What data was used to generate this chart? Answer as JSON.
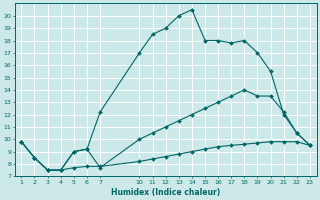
{
  "xlabel": "Humidex (Indice chaleur)",
  "background_color": "#cce8e8",
  "grid_color": "#aacccc",
  "line_color": "#006666",
  "x_ticks": [
    1,
    2,
    3,
    4,
    5,
    6,
    7,
    10,
    11,
    12,
    13,
    14,
    15,
    16,
    17,
    18,
    19,
    20,
    21,
    22,
    23
  ],
  "ylim": [
    7,
    21
  ],
  "series1_x": [
    1,
    2,
    3,
    4,
    5,
    6,
    7,
    10,
    11,
    12,
    13,
    14,
    15,
    16,
    17,
    18,
    19,
    20,
    21,
    22,
    23
  ],
  "series1_y": [
    9.8,
    8.5,
    7.5,
    7.5,
    9.0,
    9.2,
    12.2,
    17.0,
    18.5,
    19.0,
    20.0,
    20.5,
    18.0,
    18.0,
    17.8,
    18.0,
    17.0,
    15.5,
    12.0,
    10.5,
    9.5
  ],
  "series2_x": [
    1,
    2,
    3,
    4,
    5,
    6,
    7,
    10,
    11,
    12,
    13,
    14,
    15,
    16,
    17,
    18,
    19,
    20,
    21,
    22,
    23
  ],
  "series2_y": [
    9.8,
    8.5,
    7.5,
    7.5,
    9.0,
    9.2,
    7.7,
    10.0,
    10.5,
    11.0,
    11.5,
    12.0,
    12.5,
    13.0,
    13.5,
    14.0,
    13.5,
    13.5,
    12.2,
    10.5,
    9.5
  ],
  "series3_x": [
    1,
    2,
    3,
    4,
    5,
    6,
    7,
    10,
    11,
    12,
    13,
    14,
    15,
    16,
    17,
    18,
    19,
    20,
    21,
    22,
    23
  ],
  "series3_y": [
    9.8,
    8.5,
    7.5,
    7.5,
    7.7,
    7.8,
    7.8,
    8.2,
    8.4,
    8.6,
    8.8,
    9.0,
    9.2,
    9.4,
    9.5,
    9.6,
    9.7,
    9.8,
    9.8,
    9.8,
    9.5
  ]
}
